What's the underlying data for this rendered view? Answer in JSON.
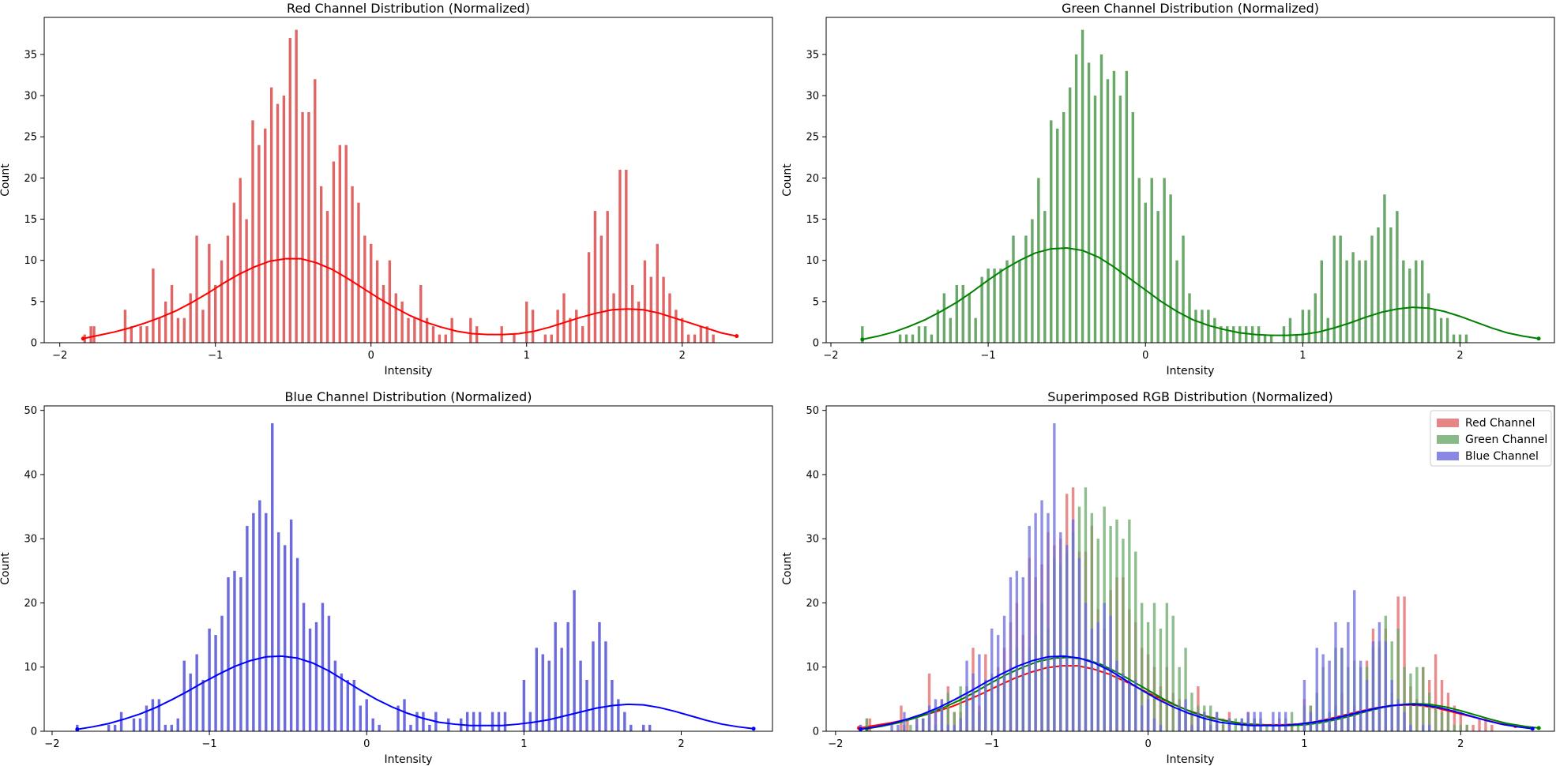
{
  "chart_data": [
    {
      "type": "bar",
      "title": "Red Channel Distribution (Normalized)",
      "xlabel": "Intensity",
      "ylabel": "Count",
      "xlim": [
        -2.1,
        2.58
      ],
      "ylim": [
        0,
        39.5
      ],
      "xticks": [
        "−2",
        "−1",
        "0",
        "1",
        "2"
      ],
      "yticks": [
        "0",
        "5",
        "10",
        "15",
        "20",
        "25",
        "30",
        "35"
      ],
      "series": [
        {
          "color": "#e06666",
          "line_color": "#ff0000",
          "bins": {
            "start": -1.84,
            "step": 0.02,
            "counts": [
              1,
              0,
              2,
              2,
              0,
              0,
              0,
              0,
              0,
              0,
              0,
              0,
              0,
              4,
              0,
              2,
              0,
              0,
              2,
              0,
              2,
              0,
              9,
              0,
              3,
              0,
              5,
              0,
              7,
              0,
              3,
              0,
              3,
              0,
              6,
              0,
              13,
              0,
              4,
              0,
              12,
              0,
              7,
              0,
              10,
              0,
              13,
              0,
              17,
              0,
              20,
              0,
              15,
              0,
              27,
              0,
              24,
              0,
              26,
              0,
              31,
              0,
              29,
              0,
              30,
              0,
              37,
              0,
              38,
              0,
              28,
              0,
              28,
              0,
              32,
              0,
              19,
              0,
              16,
              0,
              22,
              0,
              24,
              0,
              24,
              0,
              19,
              0,
              17,
              0,
              13,
              0,
              12,
              0,
              10,
              0,
              7,
              0,
              10,
              0,
              6,
              0,
              5,
              0,
              3,
              0,
              3,
              0,
              7,
              0,
              3,
              0,
              2,
              0,
              1,
              0,
              1,
              0,
              3,
              0,
              0,
              0,
              0,
              0,
              3,
              0,
              2,
              0,
              0,
              0,
              0,
              0,
              0,
              0,
              2,
              0,
              0,
              0,
              1,
              0,
              0,
              0,
              5,
              0,
              4,
              0,
              0,
              0,
              1,
              0,
              1,
              0,
              4,
              0,
              6,
              0,
              3,
              0,
              4,
              0,
              2,
              0,
              11,
              0,
              16,
              0,
              13,
              0,
              16,
              0,
              6,
              0,
              21,
              0,
              21,
              0,
              7,
              0,
              5,
              0,
              10,
              0,
              8,
              0,
              12,
              0,
              8,
              0,
              6,
              0,
              4,
              0,
              3,
              0,
              1,
              0,
              1,
              0,
              2,
              0,
              2,
              0,
              1
            ]
          },
          "kde": {
            "x": [
              -1.85,
              -1.75,
              -1.65,
              -1.55,
              -1.45,
              -1.35,
              -1.25,
              -1.15,
              -1.05,
              -0.95,
              -0.85,
              -0.75,
              -0.65,
              -0.55,
              -0.45,
              -0.35,
              -0.25,
              -0.15,
              -0.05,
              0.05,
              0.15,
              0.25,
              0.35,
              0.45,
              0.55,
              0.65,
              0.75,
              0.85,
              0.95,
              1.05,
              1.15,
              1.25,
              1.35,
              1.45,
              1.55,
              1.65,
              1.75,
              1.85,
              1.95,
              2.05,
              2.15,
              2.25,
              2.35
            ],
            "y": [
              0.5,
              0.9,
              1.3,
              1.8,
              2.4,
              3.1,
              3.9,
              4.9,
              6.0,
              7.2,
              8.3,
              9.2,
              9.9,
              10.2,
              10.2,
              9.7,
              8.9,
              7.8,
              6.6,
              5.4,
              4.3,
              3.3,
              2.5,
              1.9,
              1.4,
              1.1,
              1.0,
              1.0,
              1.1,
              1.4,
              1.9,
              2.5,
              3.1,
              3.6,
              4.0,
              4.1,
              4.0,
              3.6,
              3.0,
              2.4,
              1.8,
              1.2,
              0.8
            ]
          }
        }
      ]
    },
    {
      "type": "bar",
      "title": "Green Channel Distribution (Normalized)",
      "xlabel": "Intensity",
      "ylabel": "Count",
      "xlim": [
        -2.03,
        2.6
      ],
      "ylim": [
        0,
        39.5
      ],
      "xticks": [
        "−2",
        "−1",
        "0",
        "1",
        "2"
      ],
      "yticks": [
        "0",
        "5",
        "10",
        "15",
        "20",
        "25",
        "30",
        "35"
      ],
      "series": [
        {
          "color": "#6aa86a",
          "line_color": "#008000",
          "bins": {
            "start": -1.8,
            "step": 0.02,
            "counts": [
              2,
              0,
              0,
              0,
              0,
              0,
              0,
              0,
              0,
              0,
              0,
              0,
              1,
              0,
              1,
              0,
              1,
              0,
              2,
              0,
              2,
              0,
              1,
              0,
              4,
              0,
              6,
              0,
              3,
              0,
              7,
              0,
              7,
              0,
              6,
              0,
              3,
              0,
              8,
              0,
              9,
              0,
              9,
              0,
              9,
              0,
              10,
              0,
              13,
              0,
              10,
              0,
              13,
              0,
              15,
              0,
              20,
              0,
              16,
              0,
              27,
              0,
              26,
              0,
              28,
              0,
              31,
              0,
              35,
              0,
              38,
              0,
              34,
              0,
              30,
              0,
              35,
              0,
              32,
              0,
              33,
              0,
              30,
              0,
              33,
              0,
              28,
              0,
              20,
              0,
              17,
              0,
              20,
              0,
              16,
              0,
              20,
              0,
              18,
              0,
              10,
              0,
              13,
              0,
              6,
              0,
              4,
              0,
              4,
              0,
              4,
              0,
              3,
              0,
              2,
              0,
              2,
              0,
              2,
              0,
              2,
              0,
              2,
              0,
              2,
              0,
              2,
              0,
              1,
              0,
              1,
              0,
              0,
              0,
              2,
              0,
              3,
              0,
              1,
              0,
              4,
              0,
              4,
              0,
              6,
              0,
              10,
              0,
              3,
              0,
              13,
              0,
              13,
              0,
              10,
              0,
              11,
              0,
              10,
              0,
              10,
              0,
              13,
              0,
              14,
              0,
              18,
              0,
              14,
              0,
              16,
              0,
              10,
              0,
              9,
              0,
              10,
              0,
              10,
              0,
              6,
              0,
              4,
              0,
              3,
              0,
              3,
              0,
              1,
              0,
              1,
              0,
              1
            ]
          },
          "kde": {
            "x": [
              -1.8,
              -1.7,
              -1.6,
              -1.5,
              -1.4,
              -1.3,
              -1.2,
              -1.1,
              -1.0,
              -0.9,
              -0.8,
              -0.7,
              -0.6,
              -0.5,
              -0.4,
              -0.3,
              -0.2,
              -0.1,
              0.0,
              0.1,
              0.2,
              0.3,
              0.4,
              0.5,
              0.6,
              0.7,
              0.8,
              0.9,
              1.0,
              1.1,
              1.2,
              1.3,
              1.4,
              1.5,
              1.6,
              1.7,
              1.8,
              1.9,
              2.0,
              2.1,
              2.2,
              2.3,
              2.4,
              2.5
            ],
            "y": [
              0.4,
              0.8,
              1.3,
              2.0,
              2.8,
              3.8,
              4.9,
              6.2,
              7.6,
              8.9,
              10.0,
              10.9,
              11.4,
              11.5,
              11.2,
              10.4,
              9.2,
              7.8,
              6.4,
              5.0,
              3.8,
              2.8,
              2.1,
              1.6,
              1.2,
              1.0,
              0.9,
              0.9,
              1.0,
              1.3,
              1.8,
              2.4,
              3.1,
              3.7,
              4.1,
              4.3,
              4.2,
              3.8,
              3.2,
              2.5,
              1.8,
              1.2,
              0.8,
              0.5
            ]
          }
        }
      ]
    },
    {
      "type": "bar",
      "title": "Blue Channel Distribution (Normalized)",
      "xlabel": "Intensity",
      "ylabel": "Count",
      "xlim": [
        -2.05,
        2.58
      ],
      "ylim": [
        0,
        50.7
      ],
      "xticks": [
        "−2",
        "−1",
        "0",
        "1",
        "2"
      ],
      "yticks": [
        "0",
        "10",
        "20",
        "30",
        "40",
        "50"
      ],
      "series": [
        {
          "color": "#6b6bdf",
          "line_color": "#0000ff",
          "bins": {
            "start": -1.84,
            "step": 0.02,
            "counts": [
              1,
              0,
              0,
              0,
              0,
              0,
              0,
              0,
              0,
              0,
              1,
              0,
              1,
              0,
              3,
              0,
              0,
              0,
              2,
              0,
              2,
              0,
              4,
              0,
              5,
              0,
              5,
              0,
              1,
              0,
              1,
              0,
              2,
              0,
              11,
              0,
              9,
              0,
              12,
              0,
              8,
              0,
              16,
              0,
              15,
              0,
              18,
              0,
              24,
              0,
              25,
              0,
              24,
              0,
              32,
              0,
              34,
              0,
              36,
              0,
              34,
              0,
              48,
              0,
              31,
              0,
              29,
              0,
              33,
              0,
              27,
              0,
              20,
              0,
              16,
              0,
              17,
              0,
              20,
              0,
              18,
              0,
              11,
              0,
              9,
              0,
              8,
              0,
              8,
              0,
              4,
              0,
              5,
              0,
              2,
              0,
              1,
              0,
              0,
              0,
              0,
              0,
              4,
              0,
              5,
              0,
              1,
              0,
              3,
              0,
              3,
              0,
              1,
              0,
              3,
              0,
              0,
              0,
              2,
              0,
              0,
              0,
              2,
              0,
              3,
              0,
              3,
              0,
              3,
              0,
              0,
              0,
              3,
              0,
              3,
              0,
              3,
              0,
              0,
              0,
              0,
              0,
              8,
              0,
              3,
              0,
              13,
              0,
              12,
              0,
              11,
              0,
              17,
              0,
              13,
              0,
              17,
              0,
              22,
              0,
              11,
              0,
              8,
              0,
              14,
              0,
              17,
              0,
              14,
              0,
              8,
              0,
              5,
              0,
              3,
              0,
              1,
              0,
              0,
              0,
              1,
              0,
              1
            ]
          },
          "kde": {
            "x": [
              -1.84,
              -1.74,
              -1.64,
              -1.54,
              -1.44,
              -1.34,
              -1.24,
              -1.14,
              -1.04,
              -0.94,
              -0.84,
              -0.74,
              -0.64,
              -0.54,
              -0.44,
              -0.34,
              -0.24,
              -0.14,
              -0.04,
              0.06,
              0.16,
              0.26,
              0.36,
              0.46,
              0.56,
              0.66,
              0.76,
              0.86,
              0.96,
              1.06,
              1.16,
              1.26,
              1.36,
              1.46,
              1.56,
              1.66,
              1.76,
              1.86,
              1.96,
              2.06,
              2.16,
              2.26,
              2.36,
              2.46
            ],
            "y": [
              0.3,
              0.7,
              1.2,
              1.9,
              2.7,
              3.7,
              4.9,
              6.2,
              7.6,
              8.9,
              10.1,
              11.0,
              11.6,
              11.7,
              11.4,
              10.6,
              9.4,
              7.9,
              6.4,
              5.0,
              3.8,
              2.8,
              2.0,
              1.4,
              1.1,
              0.9,
              0.9,
              0.9,
              1.1,
              1.4,
              1.8,
              2.4,
              3.0,
              3.6,
              4.0,
              4.2,
              4.1,
              3.7,
              3.1,
              2.4,
              1.7,
              1.1,
              0.7,
              0.4
            ]
          }
        }
      ]
    },
    {
      "type": "bar",
      "title": "Superimposed RGB Distribution (Normalized)",
      "xlabel": "Intensity",
      "ylabel": "Count",
      "xlim": [
        -2.06,
        2.6
      ],
      "ylim": [
        0,
        50.7
      ],
      "xticks": [
        "−2",
        "−1",
        "0",
        "1",
        "2"
      ],
      "yticks": [
        "0",
        "10",
        "20",
        "30",
        "40",
        "50"
      ],
      "legend_position": "top-right",
      "legend": [
        "Red Channel",
        "Green Channel",
        "Blue Channel"
      ],
      "overlay_of": [
        0,
        1,
        2
      ]
    }
  ]
}
